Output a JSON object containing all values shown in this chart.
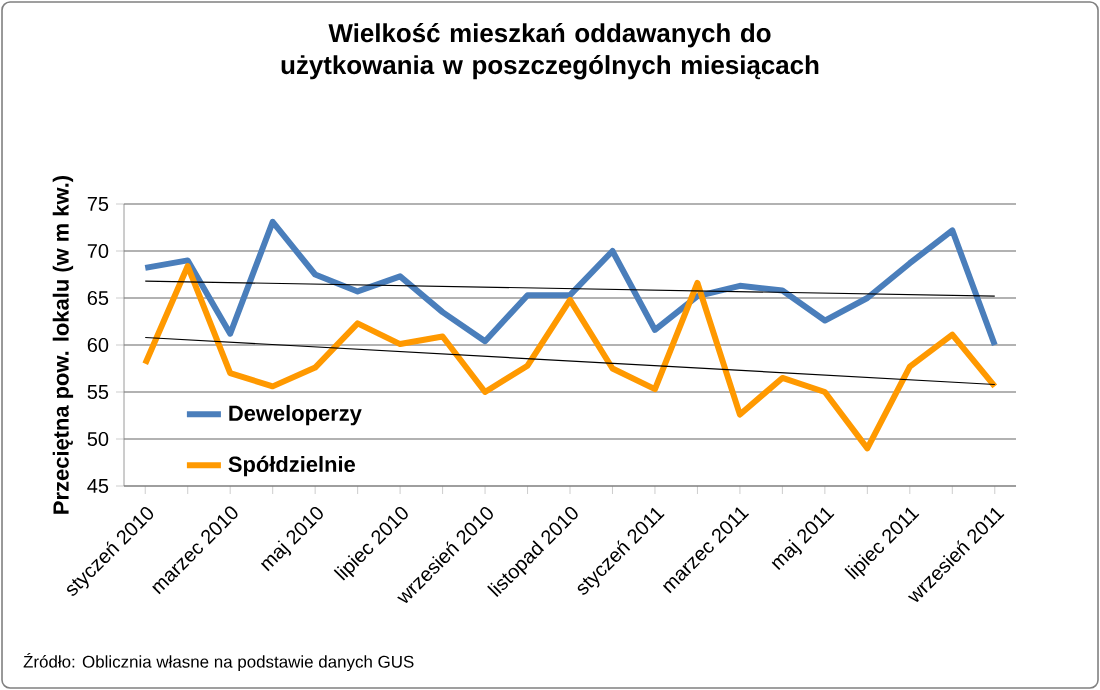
{
  "chart_data": {
    "type": "line",
    "title": "Wielkość mieszkań oddawanych do użytkowania  w poszczególnych miesiącach",
    "ylabel": "Przeciętna pow. lokalu (w m kw.)",
    "categories": [
      "styczeń 2010",
      null,
      "marzec 2010",
      null,
      "maj 2010",
      null,
      "lipiec 2010",
      null,
      "wrzesień 2010",
      null,
      "listopad 2010",
      null,
      "styczeń 2011",
      null,
      "marzec 2011",
      null,
      "maj 2011",
      null,
      "lipiec 2011",
      null,
      "wrzesień 2011"
    ],
    "series": [
      {
        "name": "Deweloperzy",
        "color": "#4a7ebb",
        "values": [
          68.2,
          69,
          61.2,
          73.1,
          67.5,
          65.7,
          67.3,
          63.5,
          60.4,
          65.3,
          65.3,
          70,
          61.6,
          65.2,
          66.3,
          65.8,
          62.6,
          65,
          68.7,
          72.2,
          60
        ]
      },
      {
        "name": "Spółdzielnie",
        "color": "#ff9900",
        "values": [
          58,
          68.4,
          57,
          55.6,
          57.6,
          62.3,
          60.1,
          60.9,
          55,
          57.8,
          64.8,
          57.5,
          55.3,
          66.6,
          52.6,
          56.5,
          55,
          49,
          57.7,
          61.1,
          55.6
        ]
      },
      {
        "type": "line",
        "color": "#000000",
        "x": [
          "styczeń 2010",
          "wrzesień 2011"
        ],
        "values": [
          66.8,
          65.2
        ]
      },
      {
        "type": "line",
        "color": "#000000",
        "x": [
          "styczeń 2010",
          "wrzesień 2011"
        ],
        "values": [
          60.8,
          55.8
        ]
      }
    ],
    "ylim": [
      45,
      75
    ],
    "yticks": [
      45,
      50,
      55,
      60,
      65,
      70,
      75
    ],
    "grid": "y",
    "legend": "bottom left",
    "annotations": [
      "Źródło: Oblicznia własne na podstawie danych  GUS"
    ]
  }
}
